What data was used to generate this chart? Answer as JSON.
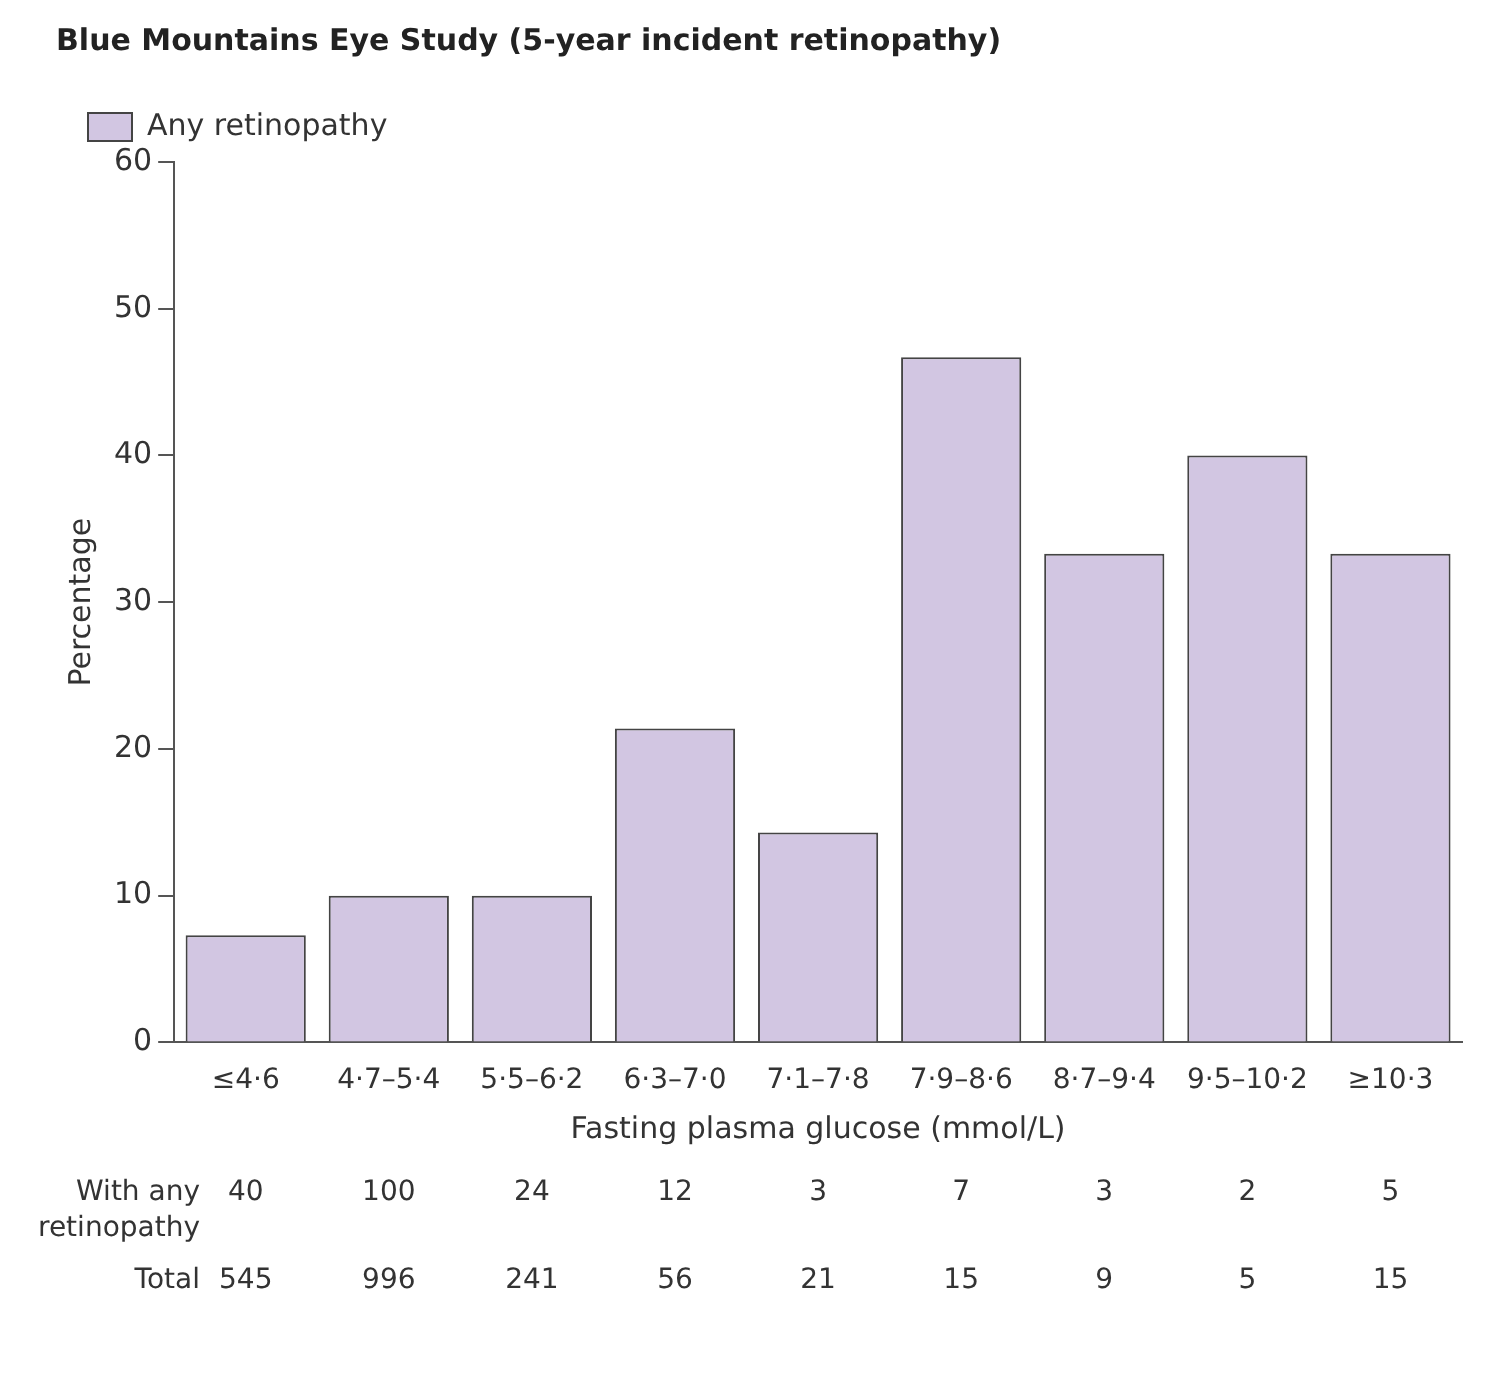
{
  "chart_data": {
    "type": "bar",
    "title": "Blue Mountains Eye Study (5-year incident retinopathy)",
    "xlabel": "Fasting plasma glucose (mmol/L)",
    "ylabel": "Percentage",
    "categories": [
      "≤4·6",
      "4·7–5·4",
      "5·5–6·2",
      "6·3–7·0",
      "7·1–7·8",
      "7·9–8·6",
      "8·7–9·4",
      "9·5–10·2",
      "≥10·3"
    ],
    "series": [
      {
        "name": "Any retinopathy",
        "color": "#d2c6e2",
        "values": [
          7.3,
          10.0,
          10.0,
          21.4,
          14.3,
          46.7,
          33.3,
          40.0,
          33.3
        ]
      }
    ],
    "ylim": [
      0,
      60
    ],
    "yticks": [
      0,
      10,
      20,
      30,
      40,
      50,
      60
    ],
    "grid": false,
    "legend": "top left",
    "annotations": [
      "With any retinopathy",
      "40",
      "100",
      "24",
      "12",
      "3",
      "7",
      "3",
      "2",
      "5",
      "Total",
      "545",
      "996",
      "241",
      "56",
      "21",
      "15",
      "9",
      "5",
      "15"
    ]
  }
}
